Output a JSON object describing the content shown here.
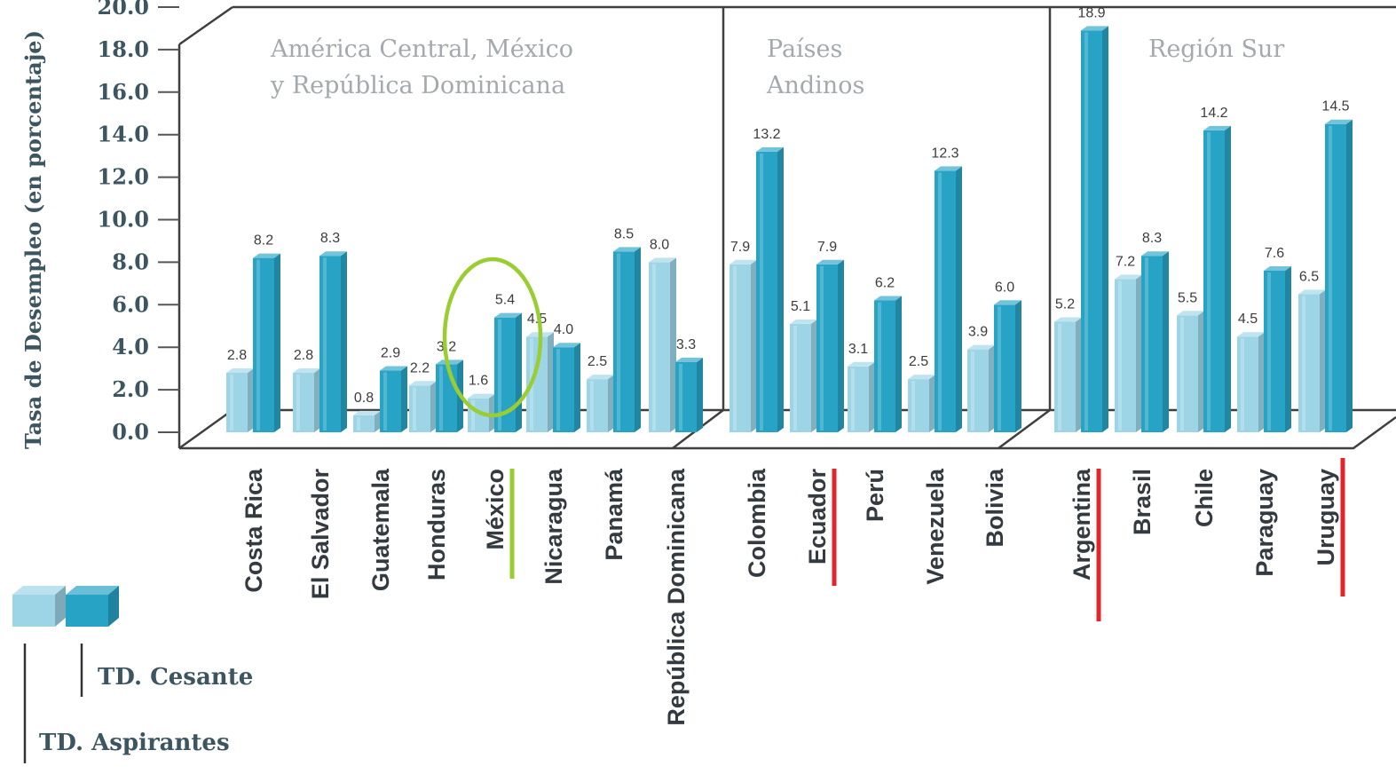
{
  "chart_data": {
    "type": "bar",
    "ylabel": "Tasa de Desempleo (en porcentaje)",
    "ylim": [
      0,
      20
    ],
    "yticks": [
      "0.0",
      "2.0",
      "4.0",
      "6.0",
      "8.0",
      "10.0",
      "12.0",
      "14.0",
      "16.0",
      "18.0",
      "20.0"
    ],
    "categories": [
      "Costa Rica",
      "El Salvador",
      "Guatemala",
      "Honduras",
      "México",
      "Nicaragua",
      "Panamá",
      "República Dominicana",
      "Colombia",
      "Ecuador",
      "Perú",
      "Venezuela",
      "Bolivia",
      "Argentina",
      "Brasil",
      "Chile",
      "Paraguay",
      "Uruguay"
    ],
    "groups": [
      {
        "name": "América Central, México y República Dominicana",
        "title_lines": [
          "América Central, México",
          "y República Dominicana"
        ],
        "start": 0,
        "count": 8
      },
      {
        "name": "Países Andinos",
        "title_lines": [
          "Países",
          "Andinos"
        ],
        "start": 8,
        "count": 5
      },
      {
        "name": "Región Sur",
        "title_lines": [
          "Región Sur"
        ],
        "start": 13,
        "count": 5
      }
    ],
    "series": [
      {
        "name": "TD. Aspirantes",
        "color": "#9ed5e6",
        "values": [
          2.8,
          2.8,
          0.8,
          2.2,
          1.6,
          4.5,
          2.5,
          8.0,
          7.9,
          5.1,
          3.1,
          2.5,
          3.9,
          5.2,
          7.2,
          5.5,
          4.5,
          6.5
        ],
        "labels": [
          "2.8",
          "2.8",
          "0.8",
          "2.2",
          "1.6",
          "4.5",
          "2.5",
          "8.0",
          "7.9",
          "5.1",
          "3.1",
          "2.5",
          "3.9",
          "5.2",
          "7.2",
          "5.5",
          "4.5",
          "6.5"
        ]
      },
      {
        "name": "TD. Cesante",
        "color": "#27a3c6",
        "values": [
          8.2,
          8.3,
          2.9,
          3.2,
          5.4,
          4.0,
          8.5,
          3.3,
          13.2,
          7.9,
          6.2,
          12.3,
          6.0,
          18.9,
          8.3,
          14.2,
          7.6,
          14.5
        ],
        "labels": [
          "8.2",
          "8.3",
          "2.9",
          "3.2",
          "5.4",
          "4.0",
          "8.5",
          "3.3",
          "13.2",
          "7.9",
          "6.2",
          "12.3",
          "6.0",
          "18.9",
          "8.3",
          "14.2",
          "7.6",
          "14.5"
        ]
      }
    ],
    "annotations": [
      {
        "type": "ellipse",
        "target": "México",
        "color": "#9acd32"
      },
      {
        "type": "underline",
        "target": "México",
        "color": "#9acd32"
      },
      {
        "type": "underline",
        "target": "Ecuador",
        "color": "#e3242b"
      },
      {
        "type": "underline",
        "target": "Argentina",
        "color": "#e3242b"
      },
      {
        "type": "underline",
        "target": "Uruguay",
        "color": "#e3242b"
      }
    ],
    "legend": {
      "position": "bottom-left",
      "entries": [
        "TD. Cesante",
        "TD. Aspirantes"
      ]
    },
    "grid": false
  }
}
